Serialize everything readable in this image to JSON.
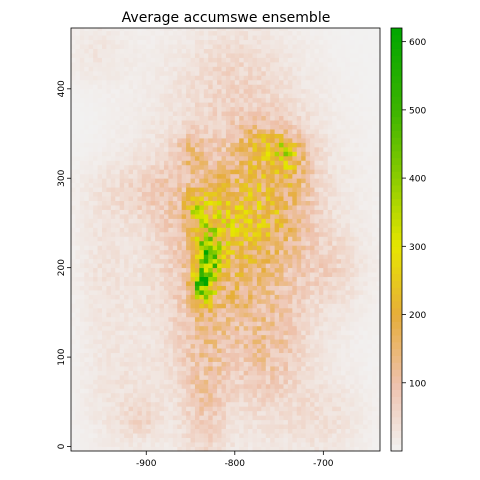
{
  "chart_data": {
    "type": "heatmap",
    "title": "Average accumswe ensemble",
    "xlim": [
      -985,
      -636
    ],
    "ylim": [
      -5,
      468
    ],
    "x_ticks": [
      -900,
      -800,
      -700
    ],
    "y_ticks": [
      0,
      100,
      200,
      300,
      400
    ],
    "colorbar": {
      "range": [
        0,
        620
      ],
      "ticks": [
        100,
        200,
        300,
        400,
        500,
        600
      ],
      "color_stops": [
        {
          "value": 0,
          "color": "#f2f2f2"
        },
        {
          "value": 100,
          "color": "#eec1ab"
        },
        {
          "value": 200,
          "color": "#e6ad3a"
        },
        {
          "value": 300,
          "color": "#e6e600"
        },
        {
          "value": 400,
          "color": "#8ccc00"
        },
        {
          "value": 500,
          "color": "#3cb400"
        },
        {
          "value": 620,
          "color": "#00a600"
        }
      ]
    },
    "blobs": [
      {
        "x": -800,
        "y": 230,
        "sx": 70,
        "sy": 130,
        "v": 90
      },
      {
        "x": -800,
        "y": 215,
        "sx": 40,
        "sy": 55,
        "v": 70
      },
      {
        "x": -765,
        "y": 295,
        "sx": 35,
        "sy": 45,
        "v": 65
      },
      {
        "x": -740,
        "y": 320,
        "sx": 18,
        "sy": 22,
        "v": 90
      },
      {
        "x": -760,
        "y": 255,
        "sx": 30,
        "sy": 30,
        "v": 50
      },
      {
        "x": -835,
        "y": 70,
        "sx": 18,
        "sy": 75,
        "v": 60
      },
      {
        "x": -760,
        "y": 105,
        "sx": 25,
        "sy": 40,
        "v": 50
      },
      {
        "x": -890,
        "y": 285,
        "sx": 50,
        "sy": 25,
        "v": 40
      },
      {
        "x": -950,
        "y": 190,
        "sx": 20,
        "sy": 60,
        "v": 25
      },
      {
        "x": -930,
        "y": 50,
        "sx": 30,
        "sy": 45,
        "v": 25
      },
      {
        "x": -700,
        "y": 30,
        "sx": 35,
        "sy": 30,
        "v": 30
      },
      {
        "x": -690,
        "y": 200,
        "sx": 25,
        "sy": 30,
        "v": 35
      },
      {
        "x": -955,
        "y": 440,
        "sx": 25,
        "sy": 25,
        "v": 25
      },
      {
        "x": -800,
        "y": 420,
        "sx": 40,
        "sy": 35,
        "v": 25
      },
      {
        "x": -905,
        "y": 30,
        "sx": 15,
        "sy": 15,
        "v": 35
      },
      {
        "x": -832,
        "y": 200,
        "sx": 8,
        "sy": 22,
        "v": 300
      },
      {
        "x": -825,
        "y": 240,
        "sx": 14,
        "sy": 30,
        "v": 140
      },
      {
        "x": -838,
        "y": 180,
        "sx": 7,
        "sy": 10,
        "v": 300
      },
      {
        "x": -845,
        "y": 268,
        "sx": 8,
        "sy": 12,
        "v": 130
      },
      {
        "x": -745,
        "y": 332,
        "sx": 10,
        "sy": 10,
        "v": 130
      },
      {
        "x": -775,
        "y": 340,
        "sx": 15,
        "sy": 15,
        "v": 80
      },
      {
        "x": -850,
        "y": 330,
        "sx": 12,
        "sy": 15,
        "v": 70
      }
    ]
  }
}
